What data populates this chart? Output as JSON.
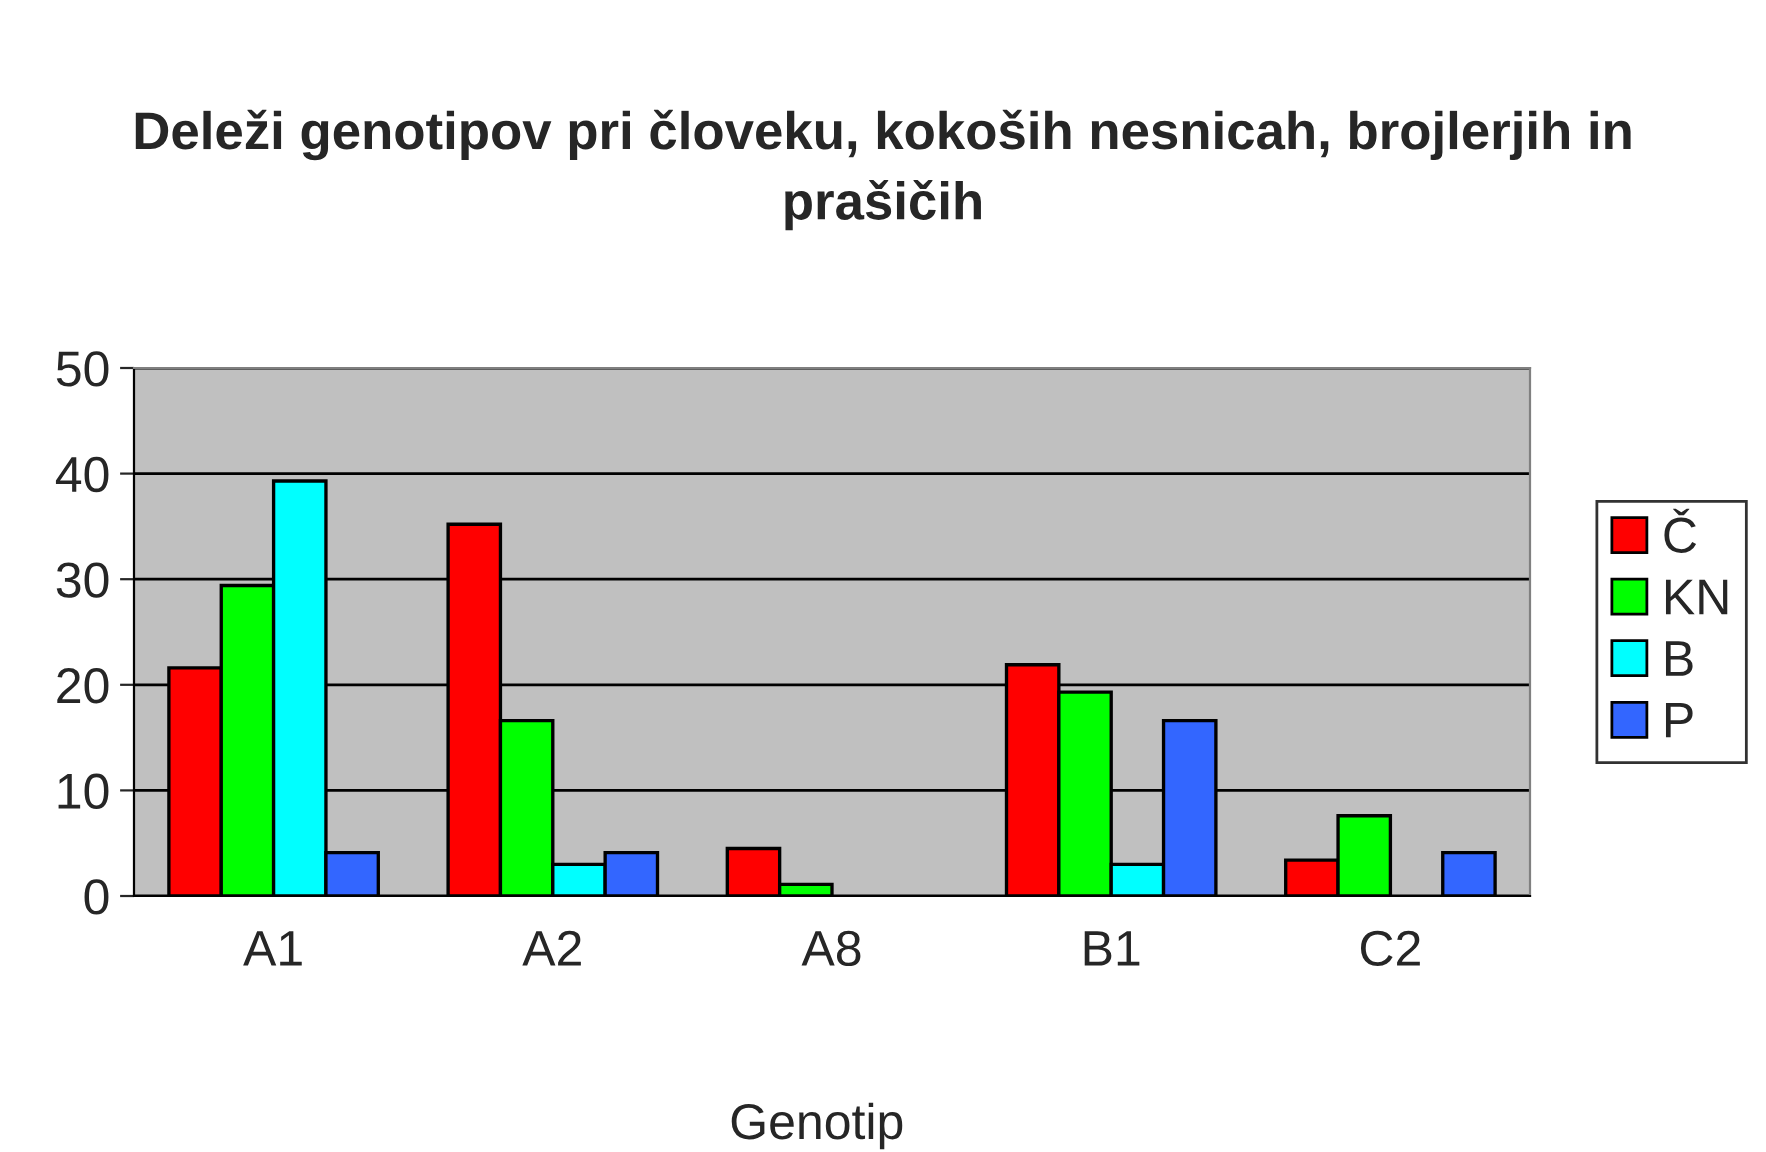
{
  "chart_data": {
    "type": "bar",
    "title": "Deleži genotipov pri človeku, kokoših nesnicah, brojlerjih in prašičih",
    "xlabel": "Genotip",
    "categories": [
      "A1",
      "A2",
      "A8",
      "B1",
      "C2"
    ],
    "series": [
      {
        "name": "Č",
        "color": "#ff0000",
        "values": [
          21.6,
          35.2,
          4.5,
          21.9,
          3.4
        ]
      },
      {
        "name": "KN",
        "color": "#00ff00",
        "values": [
          29.4,
          16.6,
          1.1,
          19.3,
          7.6
        ]
      },
      {
        "name": "B",
        "color": "#00ffff",
        "values": [
          39.3,
          3.0,
          null,
          3.0,
          null
        ]
      },
      {
        "name": "P",
        "color": "#3366ff",
        "values": [
          4.1,
          4.1,
          null,
          16.6,
          4.1
        ]
      }
    ],
    "ylim": [
      0,
      50
    ],
    "yticks": [
      0,
      10,
      20,
      30,
      40,
      50
    ],
    "grid": "y",
    "legend": "right"
  }
}
